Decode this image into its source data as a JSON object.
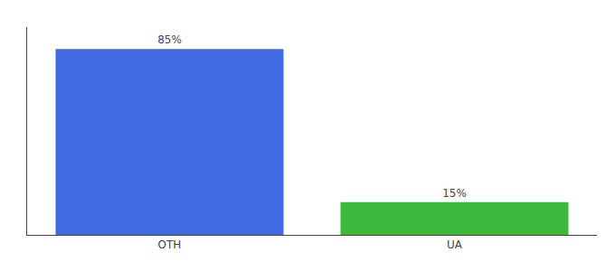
{
  "chart_data": {
    "type": "bar",
    "categories": [
      "OTH",
      "UA"
    ],
    "values": [
      85,
      15
    ],
    "colors": [
      "#4169E1",
      "#3CB83C"
    ],
    "ylim": [
      0,
      95
    ],
    "data_labels": true,
    "value_labels": [
      "85%",
      "15%"
    ],
    "tick_labels": "x",
    "grid": false
  }
}
